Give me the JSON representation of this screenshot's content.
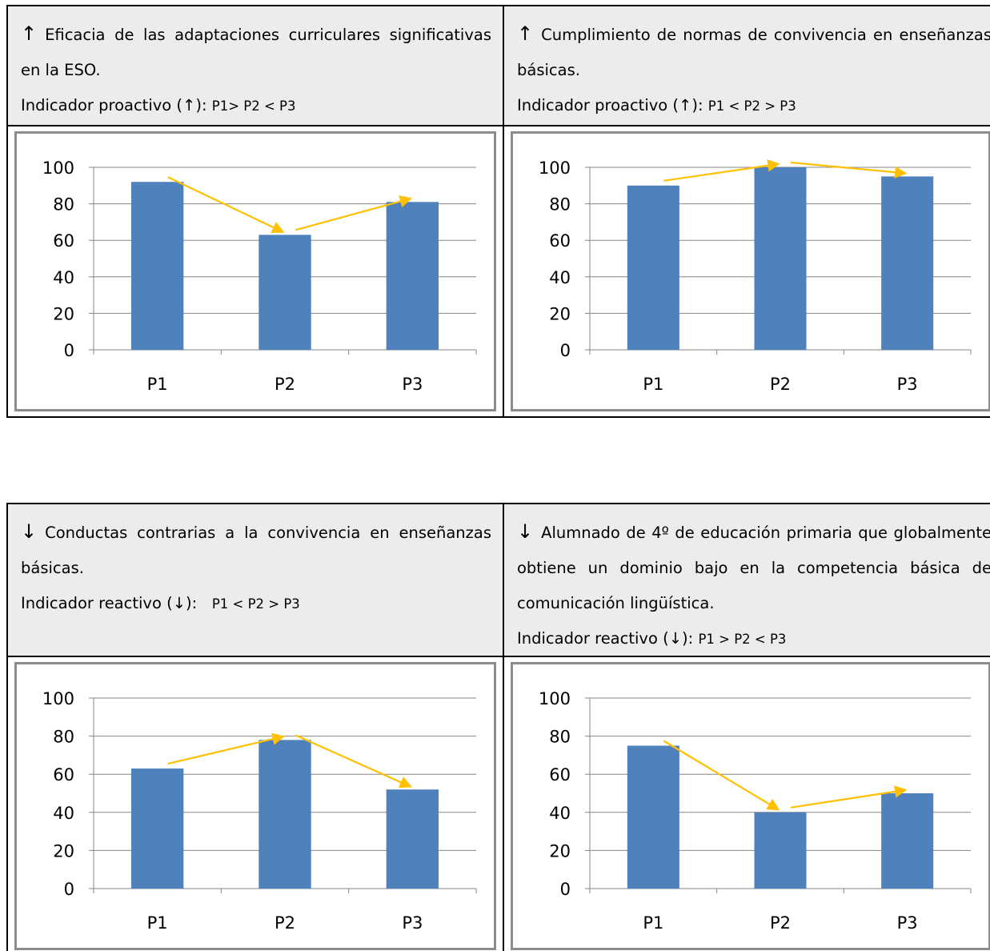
{
  "panels": [
    {
      "arrow": "↑",
      "title": "Eficacia de las adaptaciones curriculares significativas en la ESO.",
      "indicator_label": "Indicador proactivo (",
      "indicator_arrow": "↑",
      "indicator_close": "): ",
      "indicator_rule": "P1> P2 < P3"
    },
    {
      "arrow": "↑",
      "title": "Cumplimiento de normas de convivencia en enseñanzas básicas.",
      "indicator_label": "Indicador proactivo (",
      "indicator_arrow": "↑",
      "indicator_close": "): ",
      "indicator_rule": "P1 < P2 > P3"
    },
    {
      "arrow": "↓",
      "title": "Conductas contrarias a la convivencia en enseñanzas básicas.",
      "indicator_label": "Indicador reactivo (",
      "indicator_arrow": "↓",
      "indicator_close": "):   ",
      "indicator_rule": "P1 < P2 > P3"
    },
    {
      "arrow": "↓",
      "title": "Alumnado de 4º de educación primaria que globalmente obtiene un dominio bajo en la competencia básica de comunicación lingüística.",
      "indicator_label": "Indicador reactivo (",
      "indicator_arrow": "↓",
      "indicator_close": "): ",
      "indicator_rule": "P1 > P2 < P3"
    }
  ],
  "colors": {
    "bar": "#4f81bd",
    "trend_arrow": "#ffc000",
    "grid": "#868686",
    "header_bg": "#ececec"
  },
  "chart_data": [
    {
      "type": "bar",
      "categories": [
        "P1",
        "P2",
        "P3"
      ],
      "values": [
        92,
        63,
        81
      ],
      "yticks": [
        0,
        20,
        40,
        60,
        80,
        100
      ],
      "ylim": [
        0,
        100
      ],
      "grid": true
    },
    {
      "type": "bar",
      "categories": [
        "P1",
        "P2",
        "P3"
      ],
      "values": [
        90,
        100,
        95
      ],
      "yticks": [
        0,
        20,
        40,
        60,
        80,
        100
      ],
      "ylim": [
        0,
        100
      ],
      "grid": true
    },
    {
      "type": "bar",
      "categories": [
        "P1",
        "P2",
        "P3"
      ],
      "values": [
        63,
        78,
        52
      ],
      "yticks": [
        0,
        20,
        40,
        60,
        80,
        100
      ],
      "ylim": [
        0,
        100
      ],
      "grid": true
    },
    {
      "type": "bar",
      "categories": [
        "P1",
        "P2",
        "P3"
      ],
      "values": [
        75,
        40,
        50
      ],
      "yticks": [
        0,
        20,
        40,
        60,
        80,
        100
      ],
      "ylim": [
        0,
        100
      ],
      "grid": true
    }
  ]
}
